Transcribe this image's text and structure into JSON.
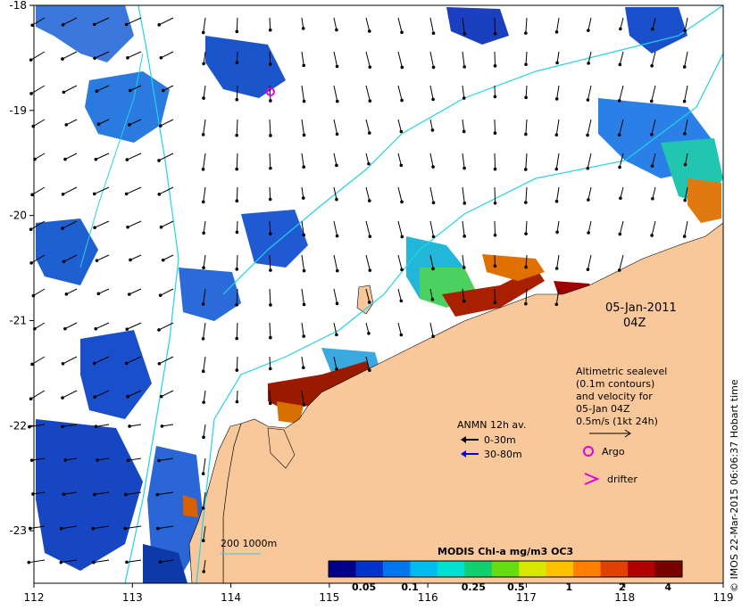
{
  "map": {
    "x_ticks": [
      "112",
      "113",
      "114",
      "115",
      "116",
      "117",
      "118",
      "119"
    ],
    "y_ticks": [
      "-18",
      "-19",
      "-20",
      "-21",
      "-22",
      "-23"
    ],
    "lon_range": [
      112,
      119
    ],
    "lat_range": [
      -23.5,
      -18
    ],
    "land_color": "#f9c89a",
    "ocean_color": "#ffffff",
    "contour_color": "#22d3e6",
    "arrow_color": "#000000",
    "date_line1": "05-Jan-2011",
    "date_line2": "04Z",
    "altimetry_note": [
      "Altimetric sealevel",
      "(0.1m contours)",
      "and velocity for",
      "05-Jan 04Z",
      "0.5m/s (1kt 24h)"
    ],
    "anmn_title": "ANMN 12h av.",
    "anmn_depth1": "0-30m",
    "anmn_depth2": "30-80m",
    "argo_label": "Argo",
    "drifter_label": "drifter",
    "bathy_label": "200  1000m",
    "credit": "© IMOS 22-Mar-2015 06:06:37 Hobart time"
  },
  "colorbar": {
    "title": "MODIS Chl-a mg/m3 OC3",
    "ticks": [
      "0.05",
      "0.1",
      "0.25",
      "0.5",
      "1",
      "2",
      "4"
    ],
    "colors": [
      "#00008b",
      "#0033cc",
      "#0077ee",
      "#00bbee",
      "#00e0d0",
      "#10d070",
      "#66dd10",
      "#d8e800",
      "#ffc000",
      "#ff8000",
      "#e04000",
      "#b00000",
      "#7a0000"
    ]
  }
}
